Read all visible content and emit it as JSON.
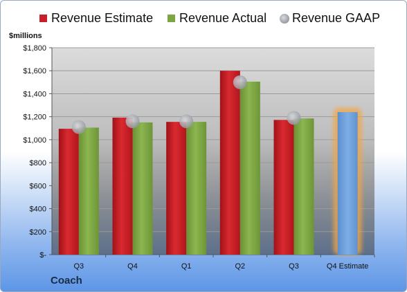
{
  "company": "Coach",
  "chart_data": {
    "type": "bar",
    "ylabel": "$millions",
    "ylim": [
      0,
      1800
    ],
    "yticks": [
      0,
      200,
      400,
      600,
      800,
      1000,
      1200,
      1400,
      1600,
      1800
    ],
    "ytick_labels": [
      "$-",
      "$200",
      "$400",
      "$600",
      "$800",
      "$1,000",
      "$1,200",
      "$1,400",
      "$1,600",
      "$1,800"
    ],
    "categories": [
      "Q3",
      "Q4",
      "Q1",
      "Q2",
      "Q3",
      "Q4 Estimate"
    ],
    "series": [
      {
        "name": "Revenue Estimate",
        "color": "#c8202a",
        "values": [
          1095,
          1192,
          1155,
          1600,
          1172,
          null
        ]
      },
      {
        "name": "Revenue Actual",
        "color": "#7ca642",
        "values": [
          1105,
          1150,
          1155,
          1505,
          1185,
          null
        ]
      },
      {
        "name": "Revenue GAAP",
        "color": "#b9bcc3",
        "values": [
          1110,
          1160,
          1160,
          1500,
          1190,
          null
        ]
      }
    ],
    "highlight": {
      "category": "Q4 Estimate",
      "value": 1240,
      "color": "#6fa0d8",
      "glow": "#f4a640"
    },
    "grid": true,
    "legend": "top"
  }
}
